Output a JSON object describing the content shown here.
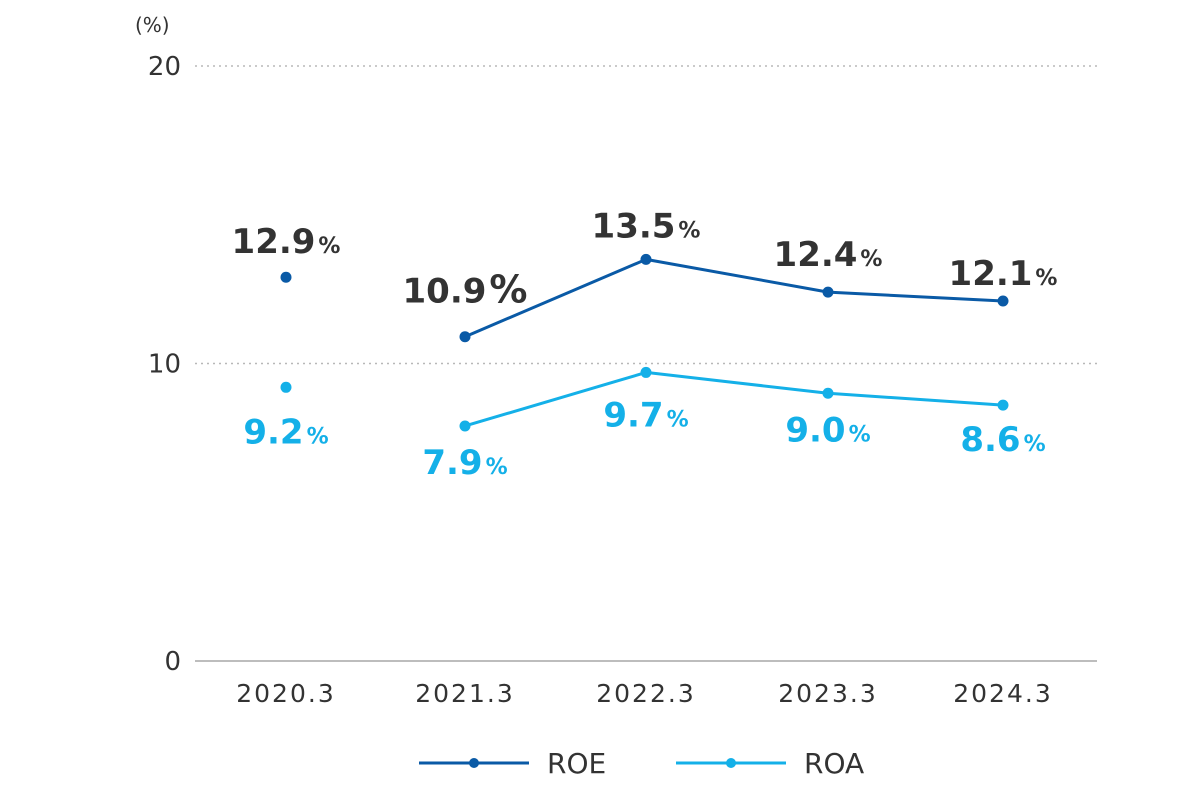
{
  "chart_data": {
    "type": "line",
    "unit_label": "(%)",
    "categories": [
      "2020.3",
      "2021.3",
      "2022.3",
      "2023.3",
      "2024.3"
    ],
    "ylim": [
      0,
      20
    ],
    "yticks": [
      0,
      10,
      20
    ],
    "grid": true,
    "legend_position": "bottom-center",
    "series": [
      {
        "name": "ROE",
        "values": [
          12.9,
          10.9,
          13.5,
          12.4,
          12.1
        ],
        "labels": [
          "12.9",
          "10.9",
          "13.5",
          "12.4",
          "12.1"
        ],
        "color": "#0a5aa6",
        "label_color": "#333333",
        "connected_from_index": 1
      },
      {
        "name": "ROA",
        "values": [
          9.2,
          7.9,
          9.7,
          9.0,
          8.6
        ],
        "labels": [
          "9.2",
          "7.9",
          "9.7",
          "9.0",
          "8.6"
        ],
        "color": "#14b0e8",
        "label_color": "#14b0e8",
        "connected_from_index": 1
      }
    ],
    "percent_sign": "%"
  }
}
